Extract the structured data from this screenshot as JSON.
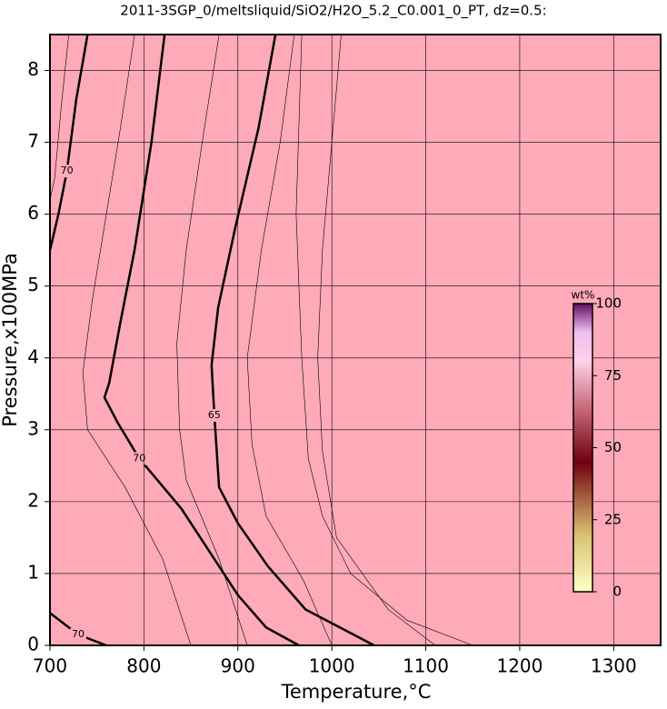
{
  "chart_data": {
    "type": "contour",
    "title": "2011-3SGP_0/meltsliquid/SiO2/H2O_5.2_C0.001_0_PT, dz=0.5:",
    "x_label": "Temperature,°C",
    "y_label": "Pressure,x100MPa",
    "xlim": [
      700,
      1350
    ],
    "ylim": [
      0,
      8.5
    ],
    "xticks": [
      700,
      800,
      900,
      1000,
      1100,
      1200,
      1300
    ],
    "yticks": [
      0,
      1,
      2,
      3,
      4,
      5,
      6,
      7,
      8
    ],
    "grid": true,
    "background": "#ffaab8",
    "contours": [
      {
        "level": 70,
        "points": [
          [
            740,
            8.5
          ],
          [
            728,
            7.6
          ],
          [
            718,
            6.6
          ],
          [
            709,
            6.0
          ],
          [
            700,
            5.5
          ]
        ]
      },
      {
        "level": 70,
        "points": [
          [
            822,
            8.5
          ],
          [
            808,
            7.0
          ],
          [
            790,
            5.5
          ],
          [
            775,
            4.5
          ],
          [
            763,
            3.65
          ],
          [
            758,
            3.45
          ],
          [
            772,
            3.1
          ],
          [
            795,
            2.6
          ],
          [
            808,
            2.4
          ],
          [
            840,
            1.9
          ],
          [
            870,
            1.3
          ],
          [
            900,
            0.7
          ],
          [
            930,
            0.25
          ],
          [
            965,
            0
          ]
        ]
      },
      {
        "level": 65,
        "points": [
          [
            940,
            8.5
          ],
          [
            922,
            7.2
          ],
          [
            897,
            5.8
          ],
          [
            879,
            4.7
          ],
          [
            872,
            3.9
          ],
          [
            875,
            3.2
          ],
          [
            880,
            2.2
          ],
          [
            900,
            1.7
          ],
          [
            932,
            1.1
          ],
          [
            972,
            0.5
          ],
          [
            1045,
            0
          ]
        ]
      },
      {
        "level": 70,
        "points": [
          [
            700,
            0.45
          ],
          [
            730,
            0.15
          ],
          [
            760,
            0
          ]
        ]
      }
    ],
    "thin_contours": [
      [
        [
          1150,
          0
        ],
        [
          1080,
          0.35
        ],
        [
          1020,
          1.0
        ],
        [
          990,
          1.8
        ],
        [
          975,
          2.6
        ],
        [
          968,
          4.0
        ],
        [
          962,
          6.0
        ],
        [
          968,
          8.5
        ]
      ],
      [
        [
          1010,
          8.5
        ],
        [
          1000,
          7.0
        ],
        [
          990,
          5.5
        ],
        [
          985,
          4.0
        ],
        [
          990,
          2.7
        ],
        [
          1005,
          1.5
        ],
        [
          1060,
          0.5
        ],
        [
          1110,
          0
        ]
      ],
      [
        [
          880,
          8.5
        ],
        [
          862,
          7.0
        ],
        [
          845,
          5.5
        ],
        [
          835,
          4.2
        ],
        [
          838,
          3.0
        ],
        [
          845,
          2.3
        ],
        [
          880,
          1.2
        ],
        [
          910,
          0
        ]
      ],
      [
        [
          790,
          8.5
        ],
        [
          775,
          7.2
        ],
        [
          760,
          6.0
        ],
        [
          745,
          4.8
        ],
        [
          735,
          3.8
        ],
        [
          740,
          3.0
        ],
        [
          780,
          2.2
        ],
        [
          820,
          1.2
        ],
        [
          850,
          0
        ]
      ],
      [
        [
          960,
          8.5
        ],
        [
          945,
          7.0
        ],
        [
          925,
          5.5
        ],
        [
          910,
          4.0
        ],
        [
          915,
          2.8
        ],
        [
          930,
          1.8
        ],
        [
          970,
          0.9
        ],
        [
          1000,
          0
        ]
      ],
      [
        [
          720,
          8.5
        ],
        [
          712,
          7.5
        ],
        [
          705,
          6.5
        ],
        [
          700,
          6.2
        ]
      ]
    ],
    "colorbar": {
      "label": "wt%",
      "lim": [
        0,
        100
      ],
      "ticks": [
        0,
        25,
        50,
        75,
        100
      ]
    }
  }
}
